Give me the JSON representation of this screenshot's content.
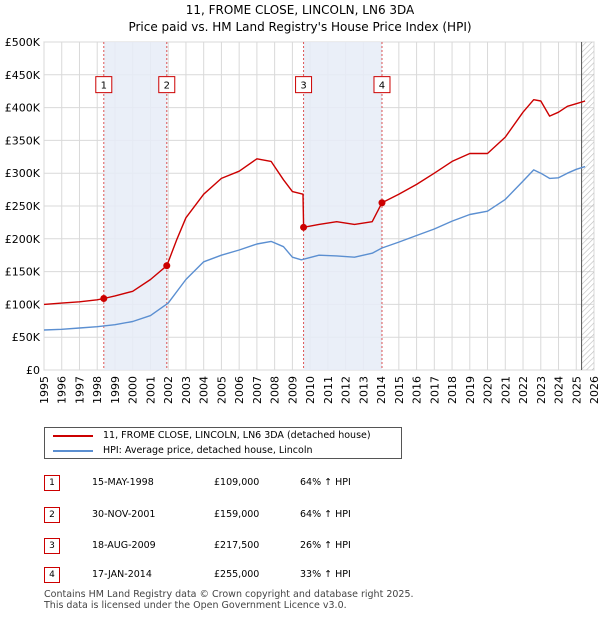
{
  "chart_data": {
    "type": "line",
    "title": "11, FROME CLOSE, LINCOLN, LN6 3DA",
    "subtitle": "Price paid vs. HM Land Registry's House Price Index (HPI)",
    "xlim": [
      1995,
      2026
    ],
    "ylim": [
      0,
      500000
    ],
    "x_ticks": [
      "1995",
      "1996",
      "1997",
      "1998",
      "1999",
      "2000",
      "2001",
      "2002",
      "2003",
      "2004",
      "2005",
      "2006",
      "2007",
      "2008",
      "2009",
      "2010",
      "2011",
      "2012",
      "2013",
      "2014",
      "2015",
      "2016",
      "2017",
      "2018",
      "2019",
      "2020",
      "2021",
      "2022",
      "2023",
      "2024",
      "2025",
      "2026"
    ],
    "y_ticks": [
      {
        "value": 0,
        "label": "£0"
      },
      {
        "value": 50000,
        "label": "£50K"
      },
      {
        "value": 100000,
        "label": "£100K"
      },
      {
        "value": 150000,
        "label": "£150K"
      },
      {
        "value": 200000,
        "label": "£200K"
      },
      {
        "value": 250000,
        "label": "£250K"
      },
      {
        "value": 300000,
        "label": "£300K"
      },
      {
        "value": 350000,
        "label": "£350K"
      },
      {
        "value": 400000,
        "label": "£400K"
      },
      {
        "value": 450000,
        "label": "£450K"
      },
      {
        "value": 500000,
        "label": "£500K"
      }
    ],
    "grid": true,
    "shaded_ranges": [
      [
        1998.37,
        2001.92
      ],
      [
        2009.63,
        2014.05
      ]
    ],
    "forecast_start": 2025.3,
    "series": [
      {
        "name": "11, FROME CLOSE, LINCOLN, LN6 3DA (detached house)",
        "color": "#cc0000",
        "points": [
          [
            1995.0,
            100000
          ],
          [
            1996.0,
            102000
          ],
          [
            1997.0,
            104000
          ],
          [
            1998.0,
            107000
          ],
          [
            1998.37,
            109000
          ],
          [
            1999.0,
            113000
          ],
          [
            2000.0,
            120000
          ],
          [
            2001.0,
            138000
          ],
          [
            2001.92,
            159000
          ],
          [
            2002.5,
            200000
          ],
          [
            2003.0,
            232000
          ],
          [
            2004.0,
            268000
          ],
          [
            2005.0,
            292000
          ],
          [
            2006.0,
            303000
          ],
          [
            2007.0,
            322000
          ],
          [
            2007.8,
            318000
          ],
          [
            2008.5,
            290000
          ],
          [
            2009.0,
            272000
          ],
          [
            2009.6,
            268000
          ],
          [
            2009.63,
            217500
          ],
          [
            2010.5,
            222000
          ],
          [
            2011.5,
            226000
          ],
          [
            2012.5,
            222000
          ],
          [
            2013.5,
            226000
          ],
          [
            2014.05,
            255000
          ],
          [
            2015.0,
            268000
          ],
          [
            2016.0,
            283000
          ],
          [
            2017.0,
            300000
          ],
          [
            2018.0,
            318000
          ],
          [
            2019.0,
            330000
          ],
          [
            2020.0,
            330000
          ],
          [
            2021.0,
            355000
          ],
          [
            2022.0,
            393000
          ],
          [
            2022.6,
            412000
          ],
          [
            2023.0,
            410000
          ],
          [
            2023.5,
            387000
          ],
          [
            2024.0,
            393000
          ],
          [
            2024.5,
            402000
          ],
          [
            2025.0,
            406000
          ],
          [
            2025.5,
            410000
          ]
        ]
      },
      {
        "name": "HPI: Average price, detached house, Lincoln",
        "color": "#5b8fd1",
        "points": [
          [
            1995.0,
            61000
          ],
          [
            1996.0,
            62000
          ],
          [
            1997.0,
            64000
          ],
          [
            1998.0,
            66000
          ],
          [
            1999.0,
            69000
          ],
          [
            2000.0,
            74000
          ],
          [
            2001.0,
            83000
          ],
          [
            2002.0,
            102000
          ],
          [
            2003.0,
            138000
          ],
          [
            2004.0,
            165000
          ],
          [
            2005.0,
            175000
          ],
          [
            2006.0,
            183000
          ],
          [
            2007.0,
            192000
          ],
          [
            2007.8,
            196000
          ],
          [
            2008.5,
            188000
          ],
          [
            2009.0,
            172000
          ],
          [
            2009.5,
            168000
          ],
          [
            2010.5,
            175000
          ],
          [
            2011.5,
            174000
          ],
          [
            2012.5,
            172000
          ],
          [
            2013.5,
            178000
          ],
          [
            2014.05,
            186000
          ],
          [
            2015.0,
            195000
          ],
          [
            2016.0,
            205000
          ],
          [
            2017.0,
            215000
          ],
          [
            2018.0,
            227000
          ],
          [
            2019.0,
            237000
          ],
          [
            2020.0,
            242000
          ],
          [
            2021.0,
            260000
          ],
          [
            2022.0,
            288000
          ],
          [
            2022.6,
            305000
          ],
          [
            2023.0,
            300000
          ],
          [
            2023.5,
            292000
          ],
          [
            2024.0,
            293000
          ],
          [
            2024.5,
            300000
          ],
          [
            2025.0,
            306000
          ],
          [
            2025.5,
            310000
          ]
        ]
      }
    ],
    "sale_markers": [
      {
        "label": "1",
        "x": 1998.37,
        "price": 109000
      },
      {
        "label": "2",
        "x": 2001.92,
        "price": 159000
      },
      {
        "label": "3",
        "x": 2009.63,
        "price": 217500
      },
      {
        "label": "4",
        "x": 2014.05,
        "price": 255000
      }
    ],
    "marker_box_value": 435000
  },
  "legend": {
    "property_label": "11, FROME CLOSE, LINCOLN, LN6 3DA (detached house)",
    "hpi_label": "HPI: Average price, detached house, Lincoln"
  },
  "sales": [
    {
      "num": "1",
      "date": "15-MAY-1998",
      "price": "£109,000",
      "hpi": "64% ↑ HPI"
    },
    {
      "num": "2",
      "date": "30-NOV-2001",
      "price": "£159,000",
      "hpi": "64% ↑ HPI"
    },
    {
      "num": "3",
      "date": "18-AUG-2009",
      "price": "£217,500",
      "hpi": "26% ↑ HPI"
    },
    {
      "num": "4",
      "date": "17-JAN-2014",
      "price": "£255,000",
      "hpi": "33% ↑ HPI"
    }
  ],
  "footer": {
    "line1": "Contains HM Land Registry data © Crown copyright and database right 2025.",
    "line2": "This data is licensed under the Open Government Licence v3.0."
  }
}
